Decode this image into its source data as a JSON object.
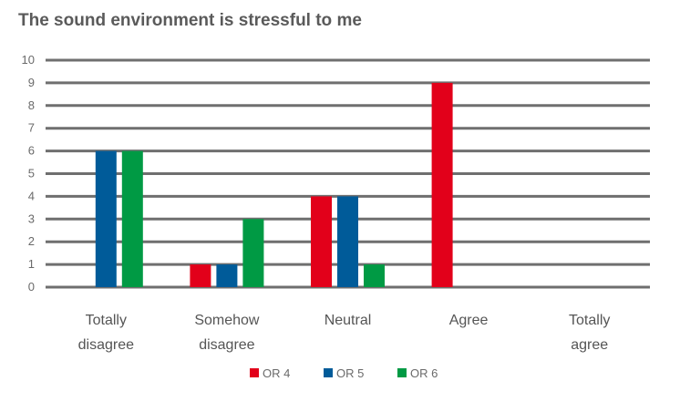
{
  "chart_data": {
    "type": "bar",
    "title": "The sound environment is stressful to me",
    "xlabel": "",
    "ylabel": "",
    "categories": [
      [
        "Totally",
        "disagree"
      ],
      [
        "Somehow",
        "disagree"
      ],
      [
        "Neutral"
      ],
      [
        "Agree"
      ],
      [
        "Totally",
        "agree"
      ]
    ],
    "series": [
      {
        "name": "OR 4",
        "color": "#e2001a",
        "values": [
          0,
          1,
          4,
          9,
          0
        ]
      },
      {
        "name": "OR 5",
        "color": "#005b99",
        "values": [
          6,
          1,
          4,
          0,
          0
        ]
      },
      {
        "name": "OR 6",
        "color": "#009a44",
        "values": [
          6,
          3,
          1,
          0,
          0
        ]
      }
    ],
    "ylim": [
      0,
      10
    ],
    "yticks": [
      0,
      1,
      2,
      3,
      4,
      5,
      6,
      7,
      8,
      9,
      10
    ],
    "grid": true,
    "gridline_color": "#6f6f6f",
    "legend_position": "bottom"
  }
}
